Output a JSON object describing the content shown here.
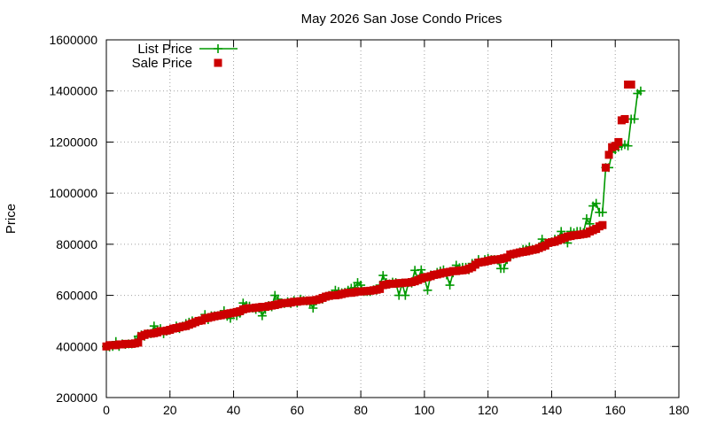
{
  "chart_data": {
    "type": "line",
    "title": "May 2026 San Jose Condo Prices",
    "xlabel": "",
    "ylabel": "Price",
    "xlim": [
      0,
      180
    ],
    "ylim": [
      200000,
      1600000
    ],
    "x_ticks": [
      0,
      20,
      40,
      60,
      80,
      100,
      120,
      140,
      160,
      180
    ],
    "y_ticks": [
      200000,
      400000,
      600000,
      800000,
      1000000,
      1200000,
      1400000,
      1600000
    ],
    "x_tick_labels": [
      "0",
      "20",
      "40",
      "60",
      "80",
      "100",
      "120",
      "140",
      "160",
      "180"
    ],
    "y_tick_labels": [
      "200000",
      "400000",
      "600000",
      "800000",
      "1000000",
      "1200000",
      "1400000",
      "1600000"
    ],
    "grid": true,
    "legend_position": "top-left",
    "colors": {
      "list": "#009900",
      "sale": "#cc0000"
    },
    "series": [
      {
        "name": "List Price",
        "style": "line-with-plus-markers",
        "values": [
          400000,
          398000,
          400000,
          419000,
          400000,
          410000,
          408000,
          410000,
          410000,
          420000,
          440000,
          445000,
          440000,
          450000,
          450000,
          480000,
          460000,
          470000,
          450000,
          460000,
          465000,
          470000,
          480000,
          470000,
          480000,
          490000,
          495000,
          500000,
          498000,
          498000,
          510000,
          525000,
          505000,
          520000,
          520000,
          520000,
          525000,
          540000,
          518000,
          510000,
          530000,
          520000,
          530000,
          570000,
          560000,
          558000,
          550000,
          545000,
          550000,
          520000,
          545000,
          560000,
          555000,
          600000,
          585000,
          570000,
          568000,
          575000,
          568000,
          580000,
          570000,
          585000,
          580000,
          578000,
          570000,
          550000,
          578000,
          585000,
          585000,
          595000,
          600000,
          600000,
          620000,
          615000,
          610000,
          612000,
          620000,
          628000,
          630000,
          650000,
          640000,
          615000,
          615000,
          615000,
          622000,
          620000,
          640000,
          678000,
          650000,
          645000,
          652000,
          650000,
          600000,
          648000,
          600000,
          650000,
          648000,
          698000,
          660000,
          700000,
          670000,
          620000,
          680000,
          680000,
          690000,
          695000,
          700000,
          680000,
          640000,
          688000,
          718000,
          708000,
          710000,
          710000,
          700000,
          725000,
          720000,
          740000,
          730000,
          740000,
          745000,
          740000,
          740000,
          738000,
          705000,
          705000,
          740000,
          760000,
          760000,
          765000,
          770000,
          780000,
          780000,
          790000,
          780000,
          780000,
          790000,
          820000,
          800000,
          800000,
          810000,
          820000,
          820000,
          850000,
          825000,
          805000,
          850000,
          845000,
          850000,
          850000,
          845000,
          900000,
          880000,
          950000,
          960000,
          925000,
          925000,
          1100000,
          1100000,
          1160000,
          1170000,
          1180000,
          1185000,
          1190000,
          1185000,
          1290000,
          1290000,
          1390000,
          1400000
        ],
        "x_start": 0
      },
      {
        "name": "Sale Price",
        "style": "square-markers",
        "values": [
          400000,
          405000,
          405000,
          405000,
          408000,
          408000,
          410000,
          410000,
          410000,
          412000,
          415000,
          440000,
          445000,
          450000,
          450000,
          452000,
          455000,
          460000,
          460000,
          462000,
          465000,
          470000,
          472000,
          475000,
          478000,
          480000,
          485000,
          490000,
          495000,
          500000,
          502000,
          510000,
          512000,
          515000,
          518000,
          520000,
          522000,
          525000,
          528000,
          530000,
          532000,
          535000,
          538000,
          545000,
          548000,
          550000,
          550000,
          552000,
          553000,
          555000,
          555000,
          558000,
          560000,
          562000,
          565000,
          568000,
          570000,
          570000,
          572000,
          575000,
          575000,
          577000,
          578000,
          578000,
          580000,
          580000,
          582000,
          585000,
          590000,
          595000,
          598000,
          600000,
          600000,
          602000,
          605000,
          608000,
          610000,
          610000,
          612000,
          615000,
          615000,
          616000,
          617000,
          618000,
          620000,
          622000,
          625000,
          640000,
          642000,
          645000,
          645000,
          646000,
          648000,
          648000,
          650000,
          650000,
          652000,
          655000,
          660000,
          665000,
          670000,
          672000,
          675000,
          680000,
          682000,
          685000,
          688000,
          690000,
          692000,
          695000,
          695000,
          697000,
          698000,
          700000,
          705000,
          710000,
          720000,
          728000,
          730000,
          732000,
          735000,
          738000,
          740000,
          740000,
          742000,
          745000,
          748000,
          760000,
          762000,
          765000,
          768000,
          770000,
          772000,
          775000,
          778000,
          780000,
          785000,
          790000,
          795000,
          805000,
          808000,
          810000,
          815000,
          820000,
          825000,
          830000,
          832000,
          835000,
          836000,
          838000,
          840000,
          842000,
          850000,
          855000,
          860000,
          870000,
          875000,
          1100000,
          1150000,
          1180000,
          1185000,
          1200000,
          1285000,
          1290000,
          1425000,
          1425000
        ],
        "x_start": 0
      }
    ]
  }
}
